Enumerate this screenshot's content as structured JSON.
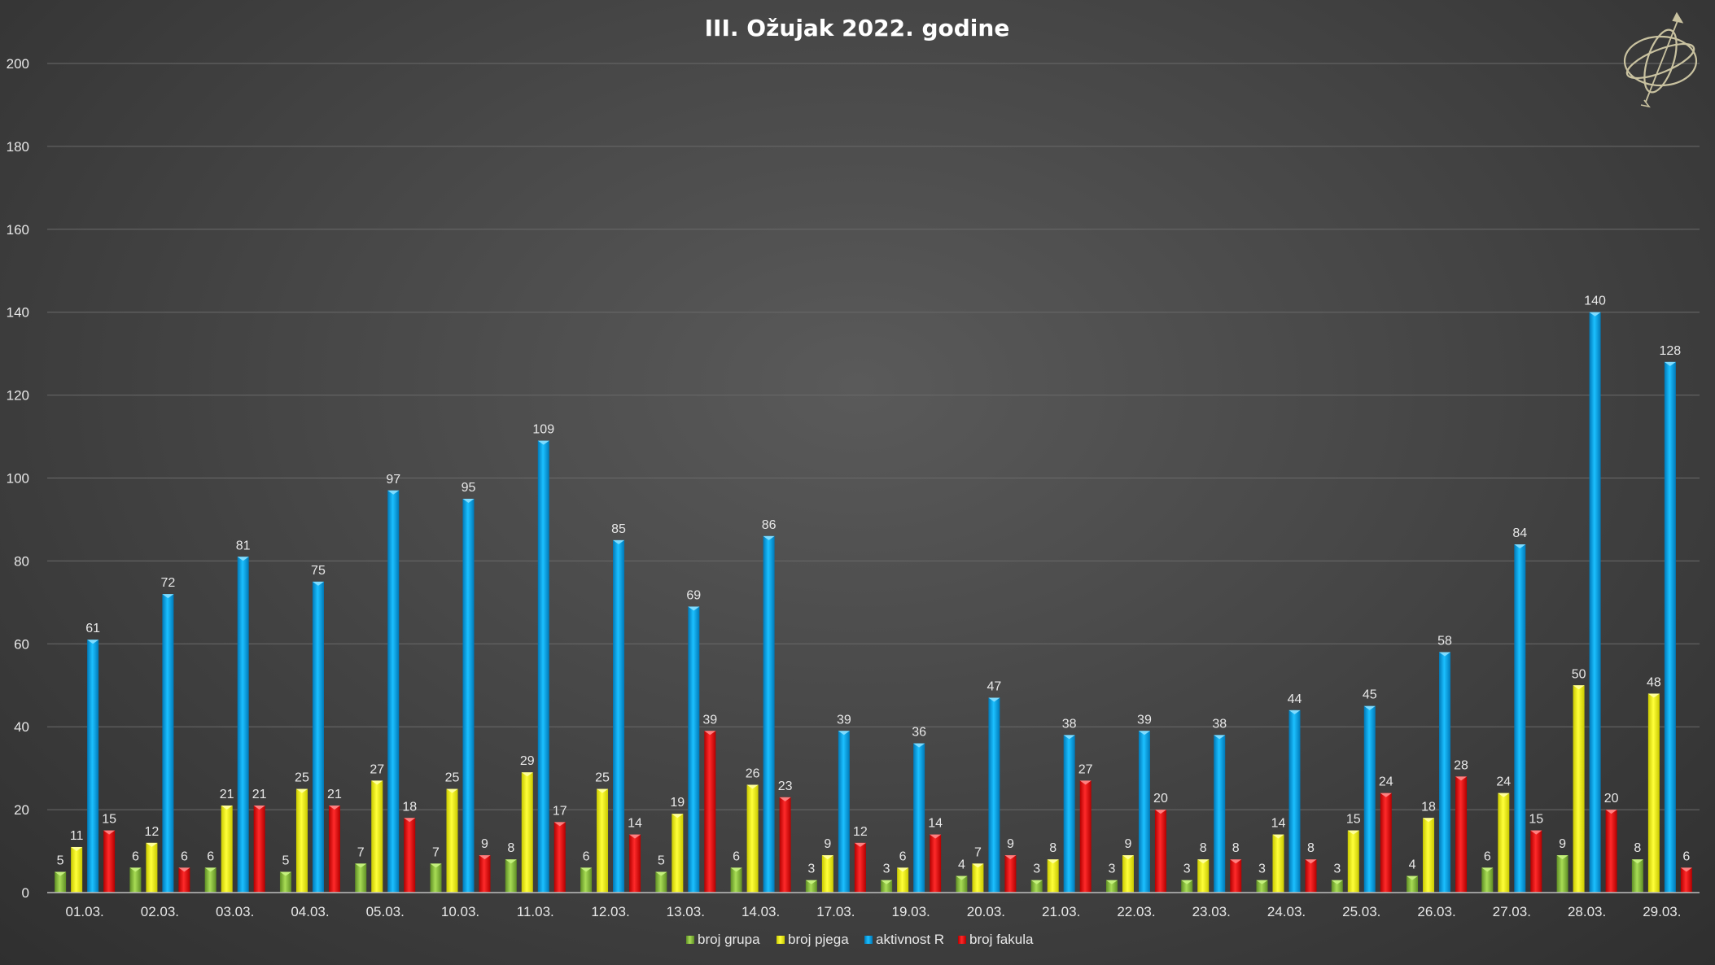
{
  "chart_data": {
    "type": "bar",
    "title": "III. Ožujak 2022. godine",
    "xlabel": "",
    "ylabel": "",
    "ylim": [
      0,
      200
    ],
    "yticks": [
      0,
      20,
      40,
      60,
      80,
      100,
      120,
      140,
      160,
      180,
      200
    ],
    "grid": true,
    "legend_position": "bottom",
    "categories": [
      "01.03.",
      "02.03.",
      "03.03.",
      "04.03.",
      "05.03.",
      "10.03.",
      "11.03.",
      "12.03.",
      "13.03.",
      "14.03.",
      "17.03.",
      "19.03.",
      "20.03.",
      "21.03.",
      "22.03.",
      "23.03.",
      "24.03.",
      "25.03.",
      "26.03.",
      "27.03.",
      "28.03.",
      "29.03."
    ],
    "series": [
      {
        "name": "broj grupa",
        "color": "#8fc63f",
        "values": [
          5,
          6,
          6,
          5,
          7,
          7,
          8,
          6,
          5,
          6,
          3,
          3,
          4,
          3,
          3,
          3,
          3,
          3,
          4,
          6,
          9,
          8
        ]
      },
      {
        "name": "broj pjega",
        "color": "#ffff00",
        "values": [
          11,
          12,
          21,
          25,
          27,
          25,
          29,
          25,
          19,
          26,
          9,
          6,
          7,
          8,
          9,
          8,
          14,
          15,
          18,
          24,
          50,
          48
        ]
      },
      {
        "name": "aktivnost R",
        "color": "#00b0f0",
        "values": [
          61,
          72,
          81,
          75,
          97,
          95,
          109,
          85,
          69,
          86,
          39,
          36,
          47,
          38,
          39,
          38,
          44,
          45,
          58,
          84,
          140,
          128
        ]
      },
      {
        "name": "broj fakula",
        "color": "#ff0000",
        "values": [
          15,
          6,
          21,
          21,
          18,
          9,
          17,
          14,
          39,
          23,
          12,
          14,
          9,
          27,
          20,
          8,
          8,
          24,
          28,
          15,
          20,
          6
        ]
      }
    ]
  },
  "logo": {
    "icon": "armillary-sphere-icon"
  }
}
